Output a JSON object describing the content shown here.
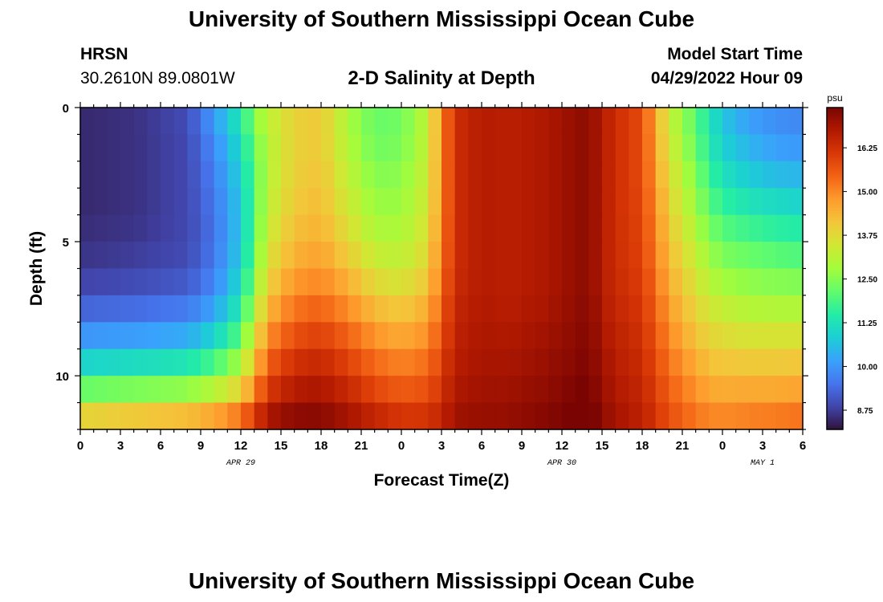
{
  "page": {
    "title": "University of Southern Mississippi Ocean Cube",
    "bottom_title": "University of Southern Mississippi Ocean Cube",
    "station": "HRSN",
    "coordinates": "30.2610N  89.0801W",
    "subtitle": "2-D Salinity at Depth",
    "model_start_label": "Model Start Time",
    "model_start_value": "04/29/2022 Hour 09"
  },
  "chart_data": {
    "type": "heatmap",
    "title": "2-D Salinity at Depth",
    "xlabel": "Forecast Time(Z)",
    "ylabel": "Depth (ft)",
    "x_unit": "hours since 04/29 00Z",
    "x_range": [
      0,
      54
    ],
    "y_range": [
      0,
      12
    ],
    "x_ticks": [
      0,
      3,
      6,
      9,
      12,
      15,
      18,
      21,
      24,
      27,
      30,
      33,
      36,
      39,
      42,
      45,
      48,
      51,
      54
    ],
    "x_tick_labels": [
      "0",
      "3",
      "6",
      "9",
      "12",
      "15",
      "18",
      "21",
      "0",
      "3",
      "6",
      "9",
      "12",
      "15",
      "18",
      "21",
      "0",
      "3",
      "6"
    ],
    "date_labels": [
      {
        "label": "APR 29",
        "x": 12
      },
      {
        "label": "APR 30",
        "x": 36
      },
      {
        "label": "MAY 1",
        "x": 51
      }
    ],
    "y_ticks": [
      0,
      5,
      10
    ],
    "y_tick_labels": [
      "0",
      "5",
      "10"
    ],
    "colorbar": {
      "unit": "psu",
      "min": 8.2,
      "max": 17.4,
      "tick_values": [
        8.75,
        10.0,
        11.25,
        12.5,
        13.75,
        15.0,
        16.25
      ],
      "tick_labels": [
        "8.75",
        "10.00",
        "11.25",
        "12.50",
        "13.75",
        "15.00",
        "16.25"
      ],
      "colormap": [
        "#30123b",
        "#4145ab",
        "#4675ed",
        "#39a2fc",
        "#1bcfd4",
        "#24eca6",
        "#61fc6c",
        "#a4fc3b",
        "#d1e834",
        "#f3c63a",
        "#fe9b2d",
        "#f36315",
        "#d93806",
        "#b11901",
        "#7a0402"
      ]
    },
    "salinity_field": {
      "description": "Salinity (psu) sampled at depth rows x forecast-hour columns",
      "depths": [
        0,
        1,
        2,
        3,
        4,
        5,
        6,
        7,
        8,
        9,
        10,
        11,
        11.75
      ],
      "hours": [
        0,
        4,
        8,
        10,
        12,
        13,
        14,
        16,
        18,
        20,
        22,
        24,
        26,
        27,
        28,
        30,
        32,
        35,
        38,
        39,
        40,
        42,
        44,
        46,
        47,
        48,
        50,
        52,
        54
      ],
      "values": [
        [
          8.5,
          8.6,
          9.0,
          10.2,
          11.5,
          12.6,
          13.2,
          13.9,
          14.1,
          12.9,
          12.2,
          12.3,
          13.2,
          15.0,
          16.3,
          16.7,
          16.6,
          16.8,
          17.2,
          16.7,
          16.3,
          15.8,
          13.3,
          12.0,
          11.3,
          10.6,
          10.0,
          9.8,
          9.7
        ],
        [
          8.5,
          8.6,
          8.9,
          9.9,
          11.2,
          12.3,
          13.1,
          13.9,
          14.0,
          12.9,
          12.2,
          12.3,
          13.2,
          15.0,
          16.3,
          16.7,
          16.6,
          16.8,
          17.2,
          16.7,
          16.3,
          15.8,
          13.4,
          12.1,
          11.4,
          10.8,
          10.3,
          10.0,
          9.9
        ],
        [
          8.5,
          8.6,
          8.9,
          9.7,
          11.0,
          12.1,
          13.0,
          13.9,
          14.1,
          13.1,
          12.4,
          12.5,
          13.3,
          15.0,
          16.3,
          16.7,
          16.6,
          16.8,
          17.2,
          16.7,
          16.3,
          15.8,
          13.6,
          12.3,
          11.6,
          11.0,
          10.6,
          10.3,
          10.2
        ],
        [
          8.5,
          8.6,
          8.9,
          9.6,
          10.8,
          12.0,
          13.1,
          14.0,
          14.2,
          13.3,
          12.6,
          12.6,
          13.4,
          15.0,
          16.3,
          16.7,
          16.6,
          16.8,
          17.2,
          16.7,
          16.3,
          15.8,
          13.8,
          12.6,
          11.9,
          11.4,
          11.0,
          10.8,
          10.7
        ],
        [
          8.5,
          8.6,
          8.9,
          9.5,
          10.7,
          12.0,
          13.2,
          14.1,
          14.3,
          13.5,
          12.8,
          12.8,
          13.5,
          15.0,
          16.3,
          16.7,
          16.6,
          16.8,
          17.2,
          16.7,
          16.3,
          15.9,
          14.0,
          12.8,
          12.2,
          11.8,
          11.5,
          11.3,
          11.2
        ],
        [
          8.6,
          8.7,
          8.9,
          9.5,
          10.7,
          12.1,
          13.4,
          14.3,
          14.5,
          13.8,
          13.1,
          13.0,
          13.7,
          15.1,
          16.3,
          16.7,
          16.6,
          16.8,
          17.2,
          16.7,
          16.3,
          15.9,
          14.2,
          13.1,
          12.6,
          12.2,
          12.0,
          11.8,
          11.7
        ],
        [
          8.7,
          8.8,
          9.0,
          9.6,
          10.9,
          12.3,
          13.7,
          14.6,
          14.8,
          14.2,
          13.5,
          13.3,
          13.9,
          15.2,
          16.3,
          16.7,
          16.6,
          16.8,
          17.2,
          16.7,
          16.3,
          16.0,
          14.4,
          13.4,
          12.9,
          12.6,
          12.4,
          12.3,
          12.2
        ],
        [
          9.0,
          9.1,
          9.3,
          9.9,
          11.2,
          12.7,
          14.1,
          15.0,
          15.2,
          14.7,
          14.0,
          13.8,
          14.3,
          15.4,
          16.4,
          16.7,
          16.6,
          16.8,
          17.2,
          16.7,
          16.4,
          16.1,
          14.6,
          13.7,
          13.3,
          13.0,
          12.8,
          12.7,
          12.7
        ],
        [
          9.6,
          9.7,
          9.9,
          10.5,
          11.7,
          13.2,
          14.6,
          15.5,
          15.7,
          15.2,
          14.6,
          14.3,
          14.7,
          15.6,
          16.5,
          16.8,
          16.7,
          16.9,
          17.3,
          16.8,
          16.5,
          16.2,
          14.9,
          14.0,
          13.7,
          13.5,
          13.3,
          13.3,
          13.3
        ],
        [
          10.4,
          10.5,
          10.7,
          11.3,
          12.4,
          13.8,
          15.2,
          16.0,
          16.2,
          15.7,
          15.1,
          14.8,
          15.1,
          15.8,
          16.6,
          16.8,
          16.8,
          17.0,
          17.3,
          16.9,
          16.6,
          16.3,
          15.1,
          14.3,
          14.0,
          13.9,
          13.8,
          13.8,
          13.8
        ],
        [
          11.5,
          11.7,
          11.9,
          12.4,
          13.3,
          14.5,
          15.8,
          16.5,
          16.6,
          16.2,
          15.6,
          15.3,
          15.5,
          16.1,
          16.7,
          16.9,
          16.9,
          17.1,
          17.4,
          17.0,
          16.7,
          16.4,
          15.4,
          14.7,
          14.4,
          14.3,
          14.3,
          14.3,
          14.4
        ],
        [
          12.9,
          13.1,
          13.3,
          13.7,
          14.4,
          15.4,
          16.4,
          16.9,
          17.0,
          16.6,
          16.1,
          15.8,
          15.9,
          16.3,
          16.8,
          17.0,
          17.0,
          17.2,
          17.5,
          17.1,
          16.8,
          16.5,
          15.6,
          15.0,
          14.8,
          14.7,
          14.8,
          14.8,
          14.9
        ],
        [
          14.3,
          14.5,
          14.7,
          15.0,
          15.6,
          16.3,
          17.0,
          17.3,
          17.3,
          17.0,
          16.6,
          16.3,
          16.3,
          16.6,
          17.0,
          17.1,
          17.1,
          17.3,
          17.6,
          17.2,
          16.9,
          16.6,
          15.8,
          15.3,
          15.1,
          15.1,
          15.2,
          15.3,
          15.4
        ]
      ]
    }
  }
}
